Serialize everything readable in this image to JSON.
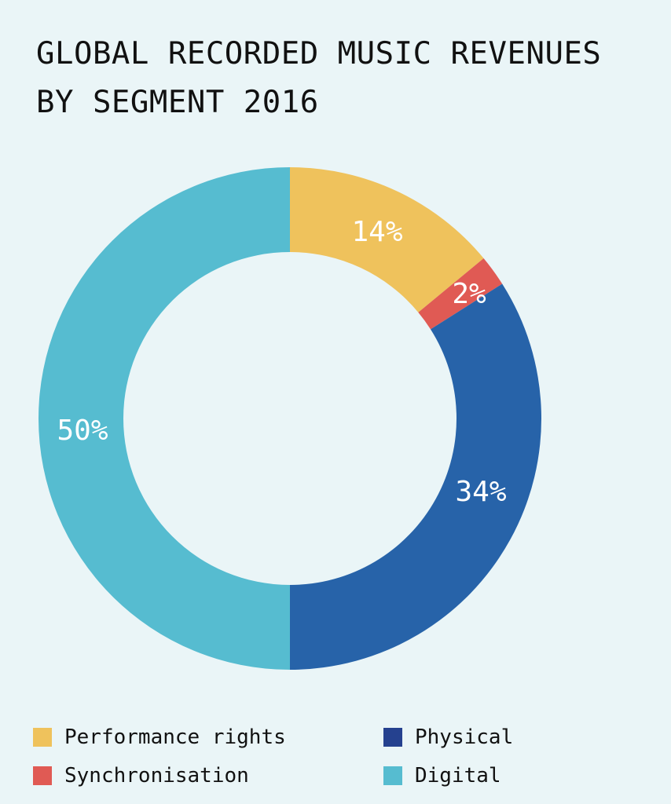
{
  "chart_data": {
    "type": "pie",
    "donut": true,
    "title_lines": [
      "GLOBAL RECORDED MUSIC REVENUES",
      "BY SEGMENT 2016"
    ],
    "categories": [
      "Performance rights",
      "Synchronisation",
      "Physical",
      "Digital"
    ],
    "values": [
      14,
      2,
      34,
      50
    ],
    "data_labels": [
      "14%",
      "2%",
      "34%",
      "50%"
    ],
    "colors": [
      "#EFC25C",
      "#E05A54",
      "#2763A9",
      "#56BCD0"
    ],
    "legend_colors": [
      "#EFC25C",
      "#E05A54",
      "#25418F",
      "#56BCD0"
    ],
    "legend_position": "bottom"
  }
}
